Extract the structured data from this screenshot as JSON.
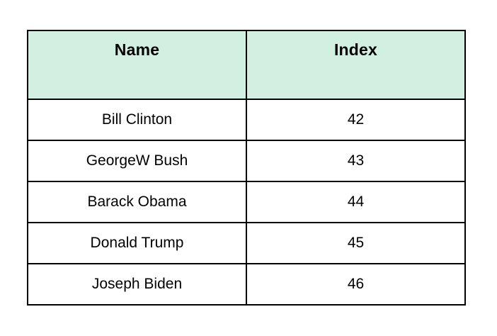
{
  "table": {
    "headers": [
      "Name",
      "Index"
    ],
    "rows": [
      {
        "name": "Bill Clinton",
        "index": "42"
      },
      {
        "name": "GeorgeW Bush",
        "index": "43"
      },
      {
        "name": "Barack Obama",
        "index": "44"
      },
      {
        "name": "Donald Trump",
        "index": "45"
      },
      {
        "name": "Joseph Biden",
        "index": "46"
      }
    ],
    "colors": {
      "header_background": "#d2f0e2",
      "border": "#000000",
      "text": "#000000",
      "page_background": "#ffffff"
    }
  }
}
